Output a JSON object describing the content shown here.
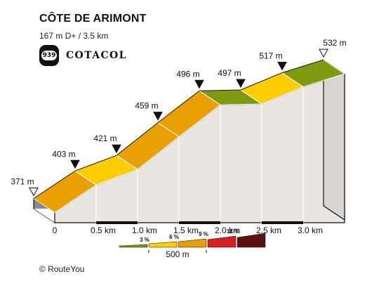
{
  "header": {
    "title": "CÔTE DE ARIMONT",
    "subtitle": "167 m D+ / 3.5 km",
    "badge_number": "939",
    "brand": "COTACOL"
  },
  "footer": {
    "copyright": "© RouteYou"
  },
  "chart_data": {
    "type": "area",
    "title": "CÔTE DE ARIMONT",
    "subtitle": "167 m D+ / 3.5 km",
    "xlabel": "",
    "ylabel": "",
    "x_unit": "km",
    "y_unit": "m",
    "xlim": [
      0,
      3.5
    ],
    "elevation_points": [
      {
        "km": 0.0,
        "elevation": 371,
        "label": "371 m",
        "marker": "open"
      },
      {
        "km": 0.5,
        "elevation": 403,
        "label": "403 m",
        "marker": "filled"
      },
      {
        "km": 1.0,
        "elevation": 421,
        "label": "421 m",
        "marker": "filled"
      },
      {
        "km": 1.5,
        "elevation": 459,
        "label": "459 m",
        "marker": "filled"
      },
      {
        "km": 2.0,
        "elevation": 496,
        "label": "496 m",
        "marker": "filled"
      },
      {
        "km": 2.5,
        "elevation": 497,
        "label": "497 m",
        "marker": "filled"
      },
      {
        "km": 3.0,
        "elevation": 517,
        "label": "517 m",
        "marker": "filled"
      },
      {
        "km": 3.5,
        "elevation": 532,
        "label": "532 m",
        "marker": "open"
      }
    ],
    "x_ticks": [
      "0",
      "0.5 km",
      "1.0 km",
      "1.5 km",
      "2.0 km",
      "2.5 km",
      "3.0 km"
    ],
    "segment_colors": [
      "#e8a000",
      "#ffcc00",
      "#e8a000",
      "#e8a000",
      "#7f9a10",
      "#ffcc00",
      "#7f9a10"
    ],
    "grade_legend": {
      "items": [
        {
          "label": "3 %",
          "color": "#7f9a10"
        },
        {
          "label": "6 %",
          "color": "#ffcc00"
        },
        {
          "label": "9 %",
          "color": "#e8a000"
        },
        {
          "label": "12 %",
          "color": "#d42020"
        },
        {
          "label": "",
          "color": "#5a1212"
        }
      ],
      "scale_label": "500 m"
    },
    "colors": {
      "wall": "#e9e5e1",
      "base": "#8a8a8a",
      "outline": "#111111"
    }
  }
}
